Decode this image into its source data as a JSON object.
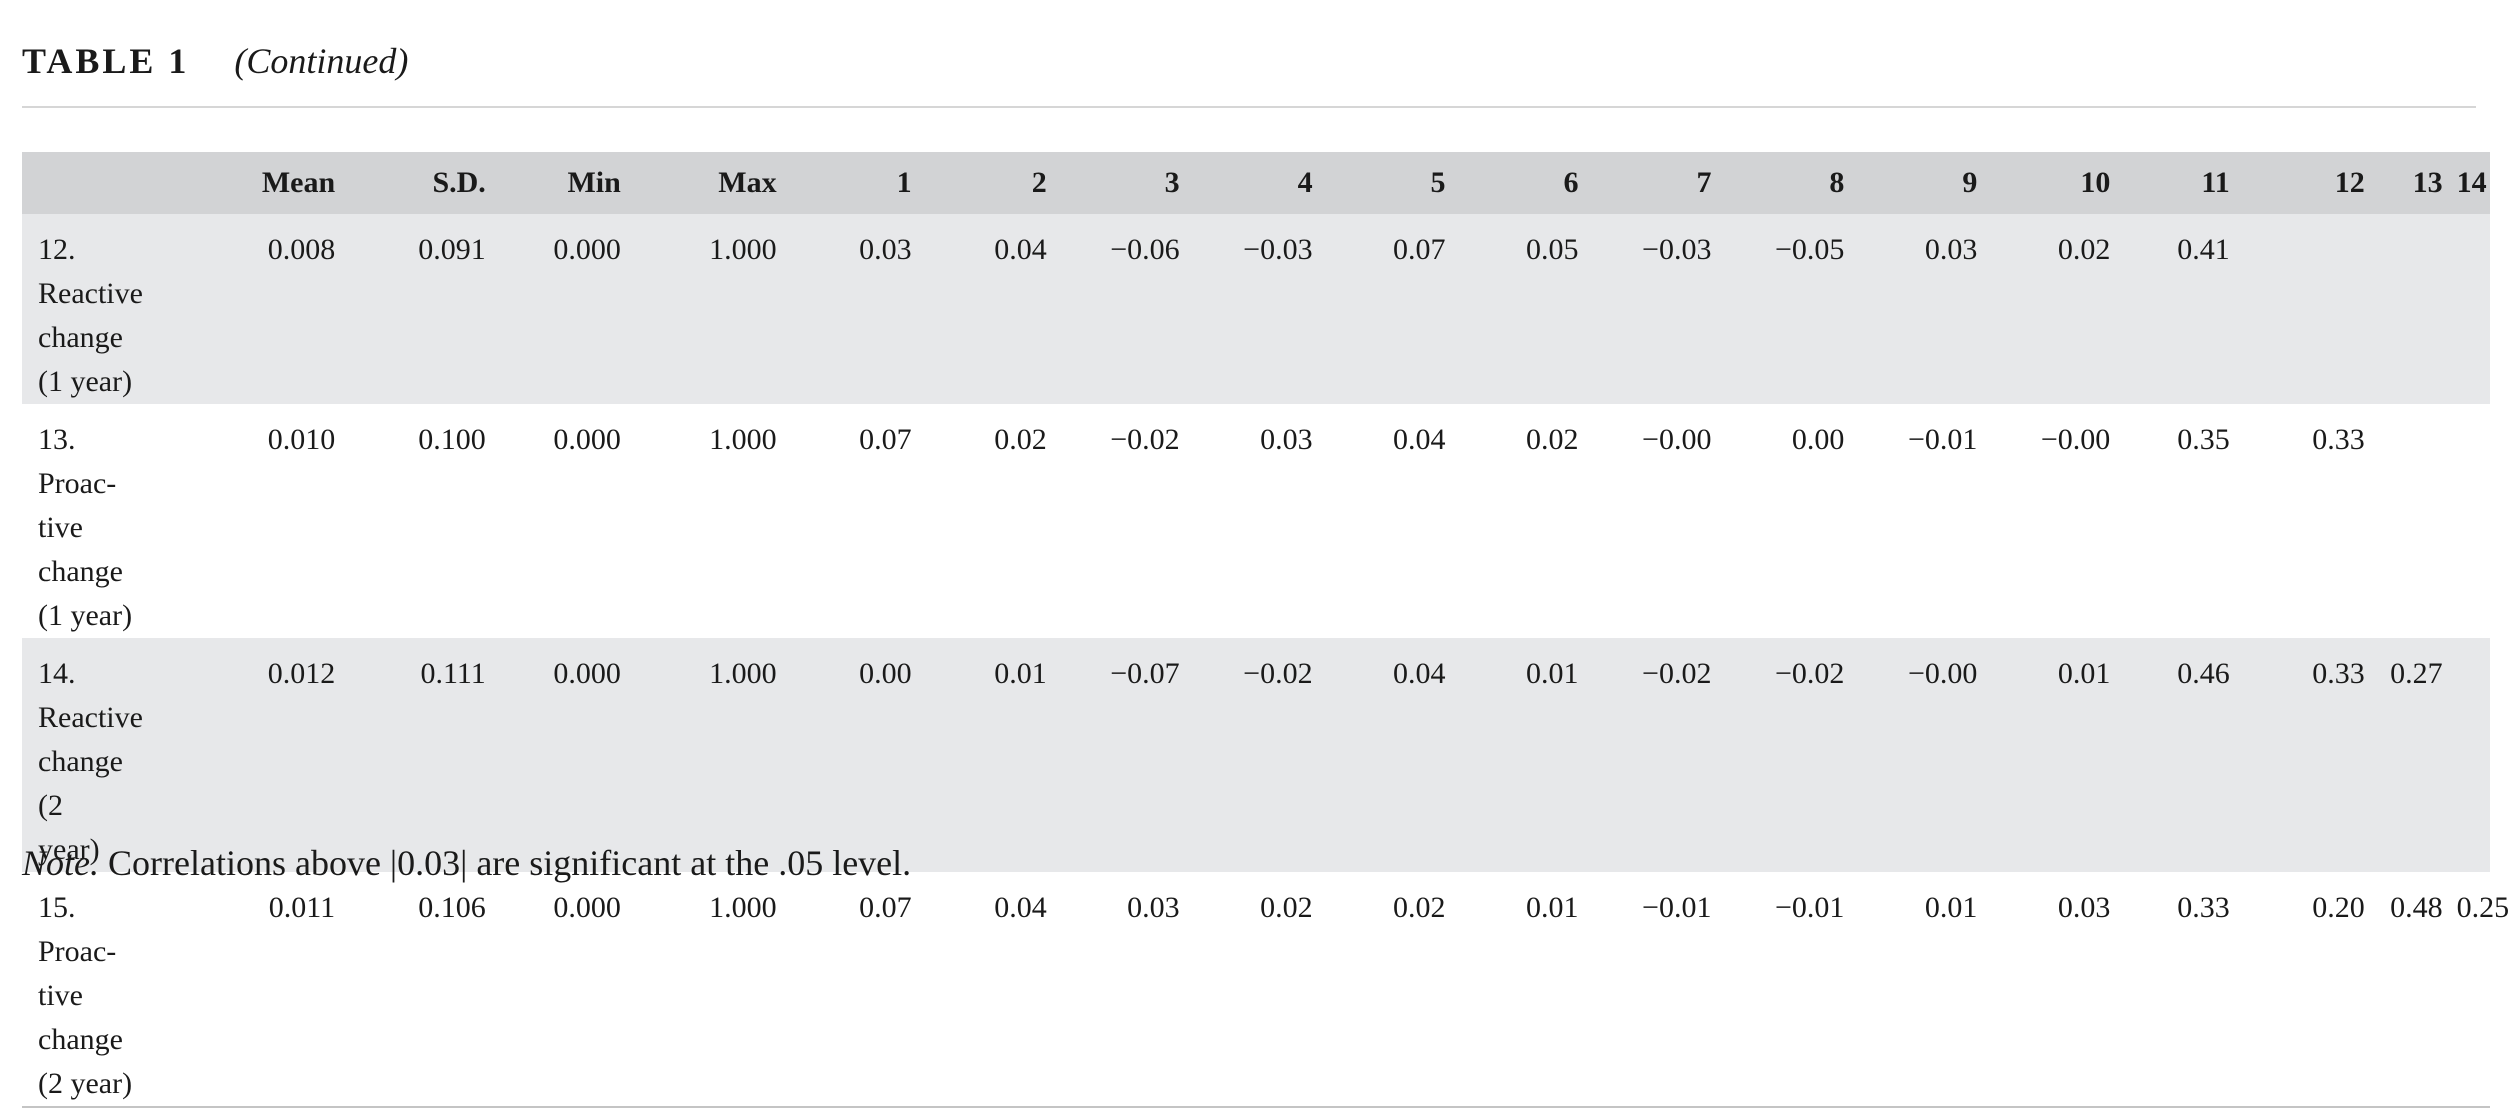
{
  "table_title": {
    "label": "TABLE 1",
    "subtitle": "(Continued)"
  },
  "columns": [
    "",
    "Mean",
    "S.D.",
    "Min",
    "Max",
    "1",
    "2",
    "3",
    "4",
    "5",
    "6",
    "7",
    "8",
    "9",
    "10",
    "11",
    "12",
    "13",
    "14"
  ],
  "rows": [
    {
      "label_lines": [
        "12. Reactive",
        "change",
        "(1 year)"
      ],
      "cells": [
        "0.008",
        "0.091",
        "0.000",
        "1.000",
        "0.03",
        "0.04",
        "−0.06",
        "−0.03",
        "0.07",
        "0.05",
        "−0.03",
        "−0.05",
        "0.03",
        "0.02",
        "0.41",
        "",
        "",
        ""
      ]
    },
    {
      "label_lines": [
        "13. Proac-",
        "tive change",
        "(1 year)"
      ],
      "cells": [
        "0.010",
        "0.100",
        "0.000",
        "1.000",
        "0.07",
        "0.02",
        "−0.02",
        "0.03",
        "0.04",
        "0.02",
        "−0.00",
        "0.00",
        "−0.01",
        "−0.00",
        "0.35",
        "0.33",
        "",
        ""
      ]
    },
    {
      "label_lines": [
        "14. Reactive",
        "change (2",
        "year)"
      ],
      "cells": [
        "0.012",
        "0.111",
        "0.000",
        "1.000",
        "0.00",
        "0.01",
        "−0.07",
        "−0.02",
        "0.04",
        "0.01",
        "−0.02",
        "−0.02",
        "−0.00",
        "0.01",
        "0.46",
        "0.33",
        "0.27",
        ""
      ]
    },
    {
      "label_lines": [
        "15. Proac-",
        "tive change",
        "(2 year)"
      ],
      "cells": [
        "0.011",
        "0.106",
        "0.000",
        "1.000",
        "0.07",
        "0.04",
        "0.03",
        "0.02",
        "0.02",
        "0.01",
        "−0.01",
        "−0.01",
        "0.01",
        "0.03",
        "0.33",
        "0.20",
        "0.48",
        "0.25"
      ]
    }
  ],
  "note": {
    "label": "Note.",
    "text": "Correlations above |0.03| are significant at the .05 level."
  },
  "colors": {
    "header_bg": "#d2d3d5",
    "shaded_row_bg": "#e7e8ea"
  }
}
